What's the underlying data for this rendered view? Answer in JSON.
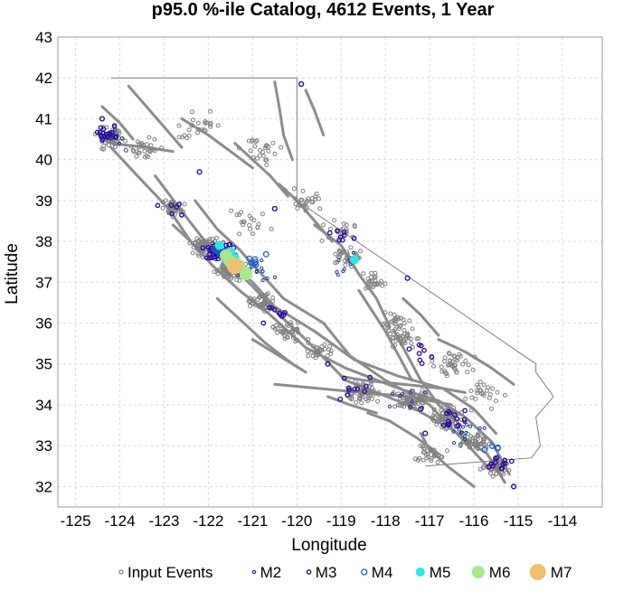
{
  "chart_data": {
    "type": "scatter",
    "title": "p95.0 %-ile Catalog, 4612 Events, 1 Year",
    "xlabel": "Longitude",
    "ylabel": "Latitude",
    "xlim": [
      -125.4,
      -113.1
    ],
    "ylim": [
      31.5,
      43.0
    ],
    "xticks": [
      "-125",
      "-124",
      "-123",
      "-122",
      "-121",
      "-120",
      "-119",
      "-118",
      "-117",
      "-116",
      "-115",
      "-114"
    ],
    "yticks": [
      "32",
      "33",
      "34",
      "35",
      "36",
      "37",
      "38",
      "39",
      "40",
      "41",
      "42",
      "43"
    ],
    "grid": true,
    "legend_position": "bottom",
    "colors": {
      "input": "#808080",
      "m2": "#1f3f8f",
      "m3": "#2a0a9e",
      "m4": "#1e64c8",
      "m5": "#2ee6e6",
      "m6": "#a6e88a",
      "m7": "#f0c070",
      "border": "#808080"
    },
    "legend": [
      {
        "label": "Input Events",
        "key": "input"
      },
      {
        "label": "M2",
        "key": "m2"
      },
      {
        "label": "M3",
        "key": "m3"
      },
      {
        "label": "M4",
        "key": "m4"
      },
      {
        "label": "M5",
        "key": "m5"
      },
      {
        "label": "M6",
        "key": "m6"
      },
      {
        "label": "M7",
        "key": "m7"
      }
    ],
    "faults": [
      [
        [
          -124.2,
          40.3
        ],
        [
          -123.6,
          39.6
        ],
        [
          -122.9,
          38.8
        ],
        [
          -122.4,
          38.0
        ],
        [
          -121.9,
          37.4
        ],
        [
          -121.3,
          36.8
        ],
        [
          -120.6,
          36.2
        ],
        [
          -119.8,
          35.4
        ],
        [
          -118.9,
          34.9
        ],
        [
          -117.7,
          34.4
        ],
        [
          -116.8,
          34.1
        ],
        [
          -116.2,
          33.7
        ],
        [
          -115.6,
          33.1
        ],
        [
          -115.2,
          32.3
        ]
      ],
      [
        [
          -123.2,
          39.6
        ],
        [
          -122.5,
          38.6
        ],
        [
          -122.0,
          37.9
        ],
        [
          -121.5,
          37.4
        ],
        [
          -121.0,
          36.9
        ],
        [
          -120.4,
          36.2
        ],
        [
          -119.8,
          35.6
        ],
        [
          -118.9,
          34.6
        ],
        [
          -117.5,
          34.0
        ],
        [
          -116.5,
          33.4
        ],
        [
          -115.7,
          32.8
        ],
        [
          -115.3,
          32.1
        ]
      ],
      [
        [
          -122.3,
          39.0
        ],
        [
          -121.8,
          38.3
        ],
        [
          -121.3,
          37.8
        ],
        [
          -120.8,
          37.2
        ],
        [
          -120.3,
          36.6
        ],
        [
          -119.4,
          36.0
        ],
        [
          -118.8,
          35.2
        ],
        [
          -118.0,
          34.6
        ],
        [
          -117.0,
          34.0
        ],
        [
          -116.3,
          33.2
        ],
        [
          -115.7,
          32.5
        ]
      ],
      [
        [
          -121.9,
          38.0
        ],
        [
          -121.6,
          37.6
        ],
        [
          -121.0,
          37.0
        ],
        [
          -120.5,
          36.4
        ],
        [
          -119.6,
          35.8
        ],
        [
          -118.7,
          35.1
        ],
        [
          -117.7,
          34.7
        ],
        [
          -116.7,
          34.4
        ],
        [
          -116.0,
          33.9
        ],
        [
          -115.5,
          33.3
        ]
      ],
      [
        [
          -120.5,
          34.5
        ],
        [
          -119.5,
          34.4
        ],
        [
          -118.5,
          34.3
        ],
        [
          -117.5,
          34.2
        ],
        [
          -116.5,
          34.0
        ]
      ],
      [
        [
          -119.0,
          34.7
        ],
        [
          -118.5,
          34.6
        ],
        [
          -117.6,
          34.5
        ],
        [
          -116.7,
          34.4
        ],
        [
          -116.2,
          34.3
        ]
      ],
      [
        [
          -117.8,
          35.8
        ],
        [
          -117.5,
          35.2
        ],
        [
          -117.2,
          34.6
        ],
        [
          -116.8,
          34.0
        ],
        [
          -116.3,
          33.5
        ]
      ],
      [
        [
          -118.6,
          36.8
        ],
        [
          -118.3,
          36.3
        ],
        [
          -118.0,
          35.8
        ],
        [
          -117.7,
          35.2
        ],
        [
          -117.4,
          34.6
        ]
      ],
      [
        [
          -119.6,
          38.4
        ],
        [
          -119.0,
          37.9
        ],
        [
          -118.6,
          37.2
        ],
        [
          -118.2,
          36.6
        ],
        [
          -117.9,
          35.9
        ]
      ],
      [
        [
          -120.4,
          39.4
        ],
        [
          -120.0,
          39.0
        ],
        [
          -119.6,
          38.5
        ],
        [
          -119.2,
          38.0
        ]
      ],
      [
        [
          -121.4,
          40.4
        ],
        [
          -121.0,
          40.0
        ],
        [
          -120.6,
          39.6
        ],
        [
          -120.2,
          39.1
        ]
      ],
      [
        [
          -122.6,
          41.0
        ],
        [
          -122.0,
          40.6
        ],
        [
          -121.5,
          40.2
        ],
        [
          -121.0,
          39.8
        ]
      ],
      [
        [
          -123.8,
          41.8
        ],
        [
          -123.4,
          41.3
        ],
        [
          -123.0,
          40.8
        ],
        [
          -122.6,
          40.3
        ]
      ],
      [
        [
          -124.4,
          41.3
        ],
        [
          -124.0,
          40.9
        ],
        [
          -123.7,
          40.5
        ]
      ],
      [
        [
          -120.5,
          41.9
        ],
        [
          -120.4,
          41.3
        ],
        [
          -120.3,
          40.6
        ],
        [
          -120.1,
          40.0
        ]
      ],
      [
        [
          -119.8,
          41.7
        ],
        [
          -119.6,
          41.2
        ],
        [
          -119.4,
          40.6
        ]
      ],
      [
        [
          -117.2,
          33.3
        ],
        [
          -117.0,
          32.9
        ],
        [
          -116.6,
          32.5
        ],
        [
          -116.0,
          32.0
        ]
      ],
      [
        [
          -118.4,
          33.8
        ],
        [
          -117.9,
          33.6
        ],
        [
          -117.3,
          33.2
        ],
        [
          -116.8,
          32.8
        ]
      ],
      [
        [
          -119.3,
          34.2
        ],
        [
          -118.8,
          34.0
        ],
        [
          -118.2,
          33.8
        ]
      ],
      [
        [
          -116.8,
          35.6
        ],
        [
          -116.2,
          35.3
        ],
        [
          -115.6,
          34.9
        ],
        [
          -115.1,
          34.5
        ]
      ],
      [
        [
          -117.6,
          36.6
        ],
        [
          -117.2,
          36.2
        ],
        [
          -116.8,
          35.7
        ]
      ],
      [
        [
          -121.0,
          35.6
        ],
        [
          -120.4,
          35.2
        ],
        [
          -119.8,
          34.8
        ]
      ],
      [
        [
          -122.8,
          38.4
        ],
        [
          -122.3,
          37.9
        ],
        [
          -121.9,
          37.4
        ]
      ],
      [
        [
          -121.8,
          36.6
        ],
        [
          -121.2,
          36.0
        ],
        [
          -120.7,
          35.5
        ],
        [
          -120.1,
          35.0
        ]
      ],
      [
        [
          -124.2,
          40.4
        ],
        [
          -123.4,
          40.3
        ],
        [
          -122.8,
          40.2
        ]
      ]
    ],
    "input_clusters": [
      {
        "lon": -124.2,
        "lat": 40.5,
        "n": 50,
        "spread": 0.4
      },
      {
        "lon": -123.5,
        "lat": 40.3,
        "n": 30,
        "spread": 0.35
      },
      {
        "lon": -122.8,
        "lat": 38.8,
        "n": 40,
        "spread": 0.25
      },
      {
        "lon": -122.1,
        "lat": 37.9,
        "n": 70,
        "spread": 0.3
      },
      {
        "lon": -121.5,
        "lat": 37.3,
        "n": 80,
        "spread": 0.3
      },
      {
        "lon": -120.8,
        "lat": 36.5,
        "n": 50,
        "spread": 0.3
      },
      {
        "lon": -120.2,
        "lat": 35.8,
        "n": 40,
        "spread": 0.3
      },
      {
        "lon": -119.5,
        "lat": 35.3,
        "n": 30,
        "spread": 0.35
      },
      {
        "lon": -118.9,
        "lat": 37.6,
        "n": 35,
        "spread": 0.35
      },
      {
        "lon": -118.3,
        "lat": 37.0,
        "n": 25,
        "spread": 0.3
      },
      {
        "lon": -117.8,
        "lat": 36.0,
        "n": 30,
        "spread": 0.35
      },
      {
        "lon": -118.5,
        "lat": 34.3,
        "n": 60,
        "spread": 0.4
      },
      {
        "lon": -117.4,
        "lat": 34.1,
        "n": 60,
        "spread": 0.35
      },
      {
        "lon": -116.6,
        "lat": 33.7,
        "n": 60,
        "spread": 0.35
      },
      {
        "lon": -116.0,
        "lat": 33.1,
        "n": 50,
        "spread": 0.3
      },
      {
        "lon": -115.5,
        "lat": 32.5,
        "n": 50,
        "spread": 0.3
      },
      {
        "lon": -116.5,
        "lat": 35.0,
        "n": 40,
        "spread": 0.45
      },
      {
        "lon": -117.6,
        "lat": 35.6,
        "n": 30,
        "spread": 0.35
      },
      {
        "lon": -119.8,
        "lat": 39.0,
        "n": 25,
        "spread": 0.4
      },
      {
        "lon": -120.8,
        "lat": 40.2,
        "n": 25,
        "spread": 0.5
      },
      {
        "lon": -122.2,
        "lat": 40.8,
        "n": 25,
        "spread": 0.5
      },
      {
        "lon": -121.0,
        "lat": 38.5,
        "n": 20,
        "spread": 0.5
      },
      {
        "lon": -117.0,
        "lat": 32.8,
        "n": 30,
        "spread": 0.35
      },
      {
        "lon": -115.8,
        "lat": 34.2,
        "n": 25,
        "spread": 0.45
      },
      {
        "lon": -119.0,
        "lat": 38.3,
        "n": 20,
        "spread": 0.4
      }
    ],
    "m2_clusters": [
      {
        "lon": -121.7,
        "lat": 37.7,
        "n": 35,
        "spread": 0.35
      },
      {
        "lon": -120.9,
        "lat": 37.3,
        "n": 15,
        "spread": 0.4
      },
      {
        "lon": -124.2,
        "lat": 40.6,
        "n": 12,
        "spread": 0.35
      },
      {
        "lon": -116.2,
        "lat": 33.3,
        "n": 15,
        "spread": 0.4
      },
      {
        "lon": -117.5,
        "lat": 34.2,
        "n": 10,
        "spread": 0.5
      },
      {
        "lon": -118.8,
        "lat": 37.5,
        "n": 8,
        "spread": 0.4
      }
    ],
    "m3_clusters": [
      {
        "lon": -121.8,
        "lat": 37.8,
        "n": 35,
        "spread": 0.35
      },
      {
        "lon": -124.3,
        "lat": 40.7,
        "n": 18,
        "spread": 0.3
      },
      {
        "lon": -115.5,
        "lat": 32.6,
        "n": 12,
        "spread": 0.3
      },
      {
        "lon": -116.4,
        "lat": 33.6,
        "n": 14,
        "spread": 0.45
      },
      {
        "lon": -120.5,
        "lat": 36.2,
        "n": 8,
        "spread": 0.4
      },
      {
        "lon": -118.5,
        "lat": 34.4,
        "n": 10,
        "spread": 0.5
      },
      {
        "lon": -119.0,
        "lat": 38.2,
        "n": 8,
        "spread": 0.4
      },
      {
        "lon": -122.8,
        "lat": 38.8,
        "n": 6,
        "spread": 0.3
      },
      {
        "lon": -117.2,
        "lat": 35.2,
        "n": 8,
        "spread": 0.5
      }
    ],
    "m4_clusters": [
      {
        "lon": -121.6,
        "lat": 37.7,
        "n": 18,
        "spread": 0.35
      },
      {
        "lon": -121.0,
        "lat": 37.5,
        "n": 8,
        "spread": 0.3
      },
      {
        "lon": -115.6,
        "lat": 32.9,
        "n": 4,
        "spread": 0.3
      }
    ],
    "m5": [
      [
        -121.6,
        37.55
      ],
      [
        -121.4,
        37.6
      ],
      [
        -121.75,
        37.9
      ],
      [
        -121.3,
        37.35
      ],
      [
        -121.5,
        37.75
      ],
      [
        -118.7,
        37.55
      ]
    ],
    "m6": [
      [
        -121.5,
        37.5
      ],
      [
        -121.3,
        37.4
      ],
      [
        -121.15,
        37.2
      ],
      [
        -121.6,
        37.65
      ]
    ],
    "m7": [
      [
        -121.4,
        37.4
      ]
    ],
    "extra_m3": [
      [
        -119.9,
        41.85
      ],
      [
        -117.5,
        37.1
      ],
      [
        -120.3,
        36.2
      ],
      [
        -117.2,
        33.9
      ],
      [
        -122.2,
        39.7
      ],
      [
        -120.5,
        38.8
      ],
      [
        -119.3,
        35.0
      ],
      [
        -115.1,
        32.0
      ],
      [
        -124.4,
        41.0
      ],
      [
        -117.1,
        33.3
      ]
    ],
    "border": [
      [
        -124.2,
        42.0
      ],
      [
        -120.0,
        42.0
      ],
      [
        -120.0,
        39.0
      ],
      [
        -114.6,
        35.0
      ],
      [
        -114.6,
        34.8
      ],
      [
        -114.2,
        34.2
      ],
      [
        -114.6,
        33.7
      ],
      [
        -114.5,
        33.0
      ],
      [
        -114.7,
        32.7
      ],
      [
        -117.1,
        32.5
      ]
    ]
  }
}
